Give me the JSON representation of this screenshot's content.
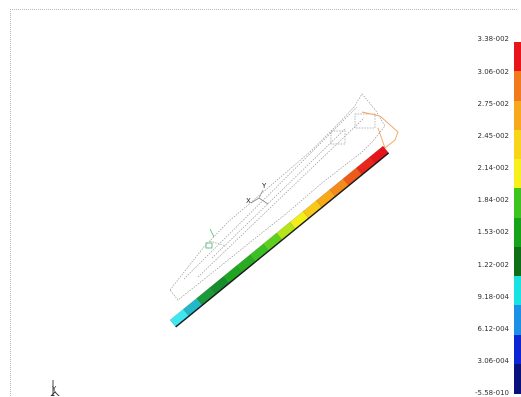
{
  "legend": {
    "labels": [
      "3.38-002",
      "3.06-002",
      "2.75-002",
      "2.45-002",
      "2.14-002",
      "1.84-002",
      "1.53-002",
      "1.22-002",
      "9.18-004",
      "6.12-004",
      "3.06-004",
      "-5.58-010"
    ],
    "colors": [
      "#e8141c",
      "#f27a1e",
      "#f8a81c",
      "#f9d51a",
      "#f7f01c",
      "#3ec51d",
      "#15a31a",
      "#0f6f14",
      "#18e2e2",
      "#1b90e6",
      "#0d25d2",
      "#08117c"
    ]
  },
  "triad": {
    "labels": {
      "y": "Y",
      "x": "X",
      "z": "Z"
    }
  },
  "model": {
    "element_colors": [
      "#3ee6f0",
      "#23b8c8",
      "#1a9a3a",
      "#178c2a",
      "#1fa422",
      "#2aac22",
      "#3bbf24",
      "#5fcf1e",
      "#b6e41a",
      "#f1ee1b",
      "#f8c81b",
      "#f8a819",
      "#f38b1c",
      "#ee5a1a",
      "#e8261b",
      "#e5141a"
    ],
    "local_axis_labels": {
      "y": "Y",
      "x": "X"
    }
  }
}
